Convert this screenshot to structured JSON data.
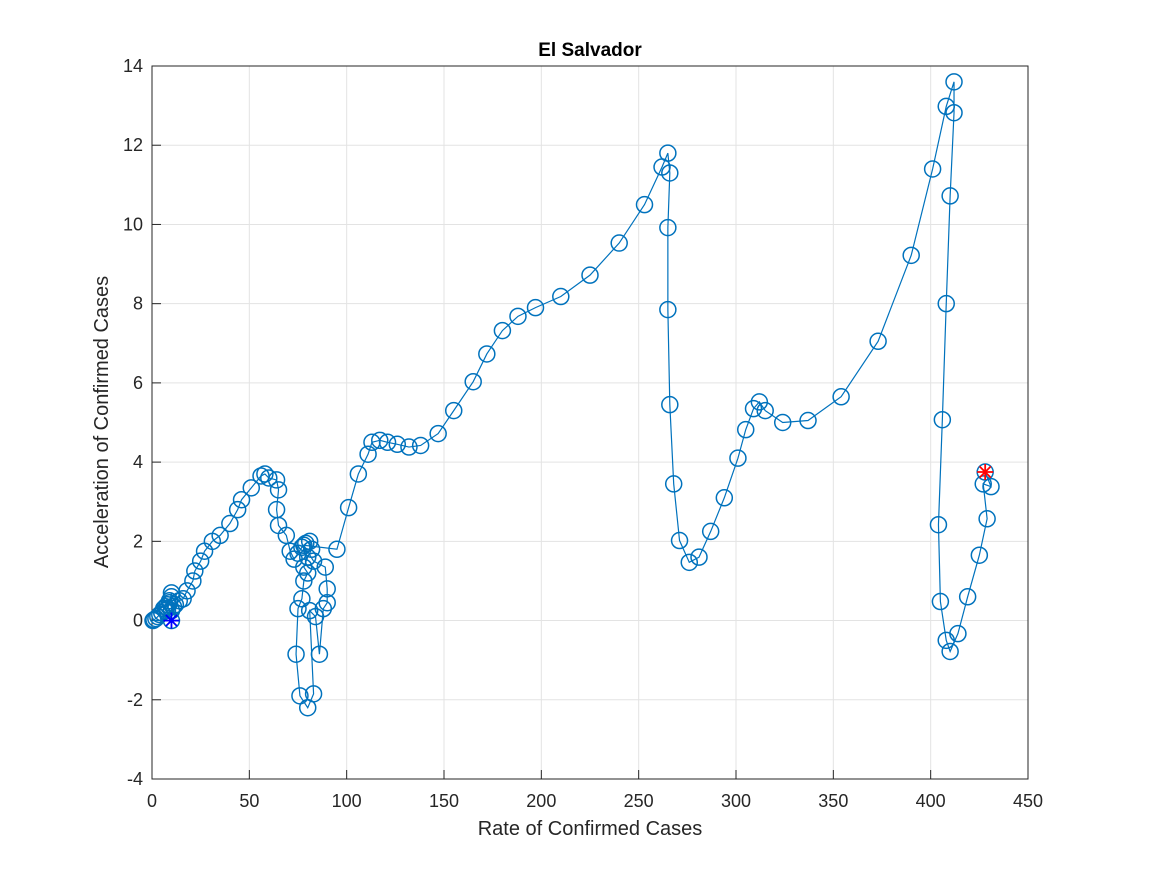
{
  "chart_data": {
    "type": "line",
    "title": "El Salvador",
    "xlabel": "Rate of Confirmed Cases",
    "ylabel": "Acceleration of Confirmed Cases",
    "xlim": [
      0,
      450
    ],
    "xticks": [
      0,
      50,
      100,
      150,
      200,
      250,
      300,
      350,
      400,
      450
    ],
    "ylim": [
      -4,
      14
    ],
    "yticks": [
      -4,
      -2,
      0,
      2,
      4,
      6,
      8,
      10,
      12,
      14
    ],
    "grid": true,
    "series": [
      {
        "color": "#0072bd",
        "x": [
          10,
          0.5,
          1,
          2,
          3,
          4,
          5,
          6,
          7,
          8,
          9,
          10,
          10,
          9,
          8,
          7,
          8,
          10,
          11,
          12,
          14,
          16,
          18,
          21,
          22,
          25,
          27,
          31,
          35,
          40,
          44,
          46,
          51,
          56,
          58,
          60,
          64,
          65,
          64,
          65,
          69,
          71,
          73,
          75,
          77,
          79,
          81,
          82,
          80,
          78,
          80,
          78,
          77,
          75,
          74,
          76,
          80,
          83,
          81,
          84,
          86,
          88,
          90,
          90,
          89,
          83,
          78,
          95,
          101,
          106,
          111,
          113,
          117,
          121,
          126,
          132,
          138,
          147,
          155,
          165,
          172,
          180,
          188,
          197,
          210,
          225,
          240,
          253,
          262,
          265,
          266,
          265,
          265,
          266,
          268,
          271,
          276,
          281,
          287,
          294,
          301,
          305,
          309,
          312,
          315,
          324,
          337,
          354,
          373,
          390,
          401,
          408,
          412,
          412,
          410,
          408,
          406,
          404,
          405,
          408,
          410,
          414,
          419,
          425,
          429,
          427,
          431,
          428
        ],
        "values": [
          0,
          0,
          0.02,
          0.05,
          0.1,
          0.15,
          0.2,
          0.3,
          0.35,
          0.4,
          0.5,
          0.6,
          0.7,
          0.45,
          0.3,
          0.25,
          0.2,
          0.25,
          0.35,
          0.4,
          0.5,
          0.55,
          0.75,
          1.0,
          1.25,
          1.5,
          1.75,
          2.0,
          2.15,
          2.45,
          2.8,
          3.05,
          3.35,
          3.65,
          3.7,
          3.6,
          3.55,
          3.3,
          2.8,
          2.4,
          2.15,
          1.75,
          1.55,
          1.7,
          1.85,
          1.95,
          2.0,
          1.8,
          1.6,
          1.35,
          1.2,
          1.0,
          0.55,
          0.3,
          -0.85,
          -1.9,
          -2.2,
          -1.85,
          0.25,
          0.1,
          -0.85,
          0.3,
          0.45,
          0.8,
          1.35,
          1.5,
          1.9,
          1.8,
          2.85,
          3.7,
          4.2,
          4.5,
          4.55,
          4.5,
          4.45,
          4.38,
          4.42,
          4.72,
          5.3,
          6.03,
          6.73,
          7.32,
          7.68,
          7.9,
          8.18,
          8.72,
          9.53,
          10.5,
          11.45,
          11.8,
          11.3,
          9.92,
          7.85,
          5.45,
          3.45,
          2.02,
          1.47,
          1.6,
          2.25,
          3.1,
          4.1,
          4.82,
          5.35,
          5.52,
          5.3,
          5.0,
          5.05,
          5.65,
          7.05,
          9.22,
          11.4,
          12.98,
          13.6,
          12.82,
          10.72,
          8.0,
          5.07,
          2.42,
          0.48,
          -0.5,
          -0.78,
          -0.33,
          0.6,
          1.65,
          2.57,
          3.45,
          3.38,
          3.75
        ]
      }
    ],
    "markers": [
      {
        "x": 10,
        "y": 0,
        "color": "#0000ff"
      },
      {
        "x": 428,
        "y": 3.75,
        "color": "#ff0000"
      }
    ]
  }
}
